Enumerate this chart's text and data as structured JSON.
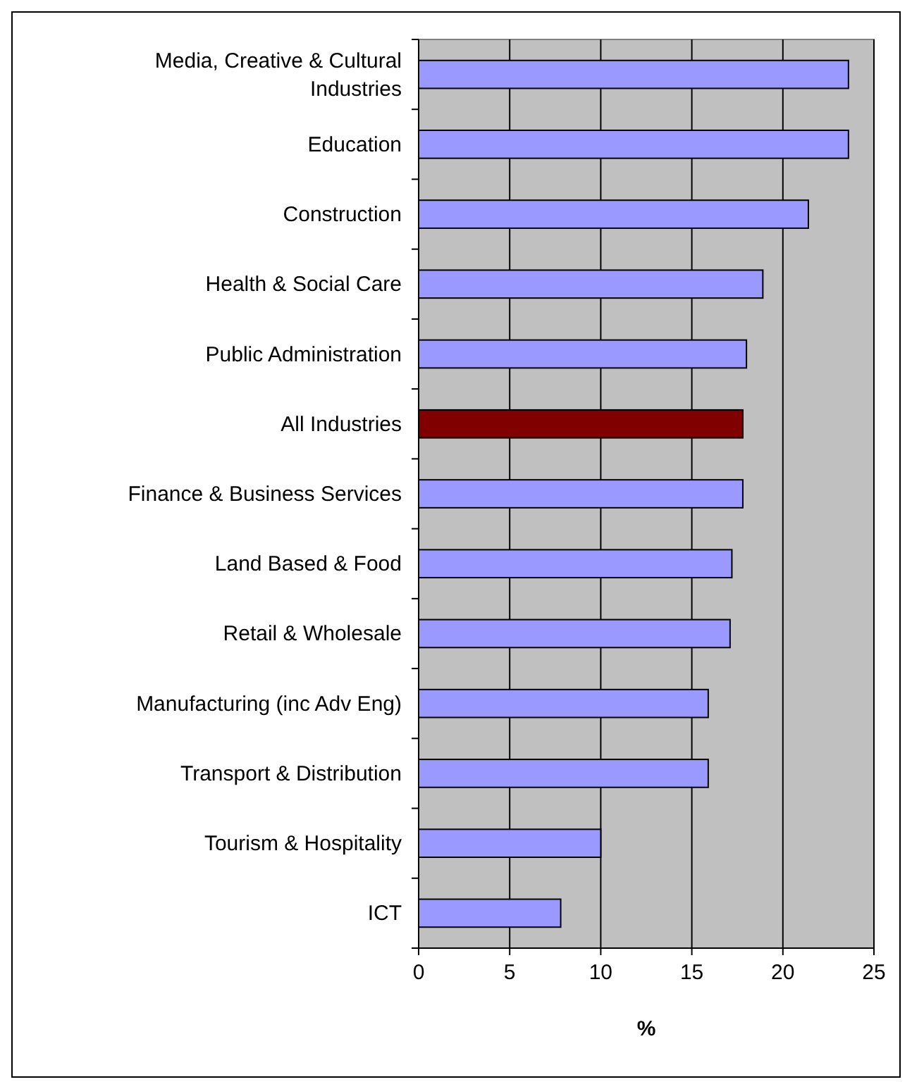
{
  "chart_data": {
    "type": "bar",
    "orientation": "horizontal",
    "xlabel": "%",
    "categories": [
      "Media, Creative & Cultural Industries",
      "Education",
      "Construction",
      "Health & Social Care",
      "Public Administration",
      "All Industries",
      "Finance & Business Services",
      "Land Based & Food",
      "Retail & Wholesale",
      "Manufacturing (inc Adv Eng)",
      "Transport & Distribution",
      "Tourism & Hospitality",
      "ICT"
    ],
    "values": [
      23.6,
      23.6,
      21.4,
      18.9,
      18.0,
      17.8,
      17.8,
      17.2,
      17.1,
      15.9,
      15.9,
      10.0,
      7.8
    ],
    "colors": [
      "#9999ff",
      "#9999ff",
      "#9999ff",
      "#9999ff",
      "#9999ff",
      "#800000",
      "#9999ff",
      "#9999ff",
      "#9999ff",
      "#9999ff",
      "#9999ff",
      "#9999ff",
      "#9999ff"
    ],
    "xlim": [
      0,
      25
    ],
    "xticks": [
      0,
      5,
      10,
      15,
      20,
      25
    ],
    "grid": "x"
  }
}
